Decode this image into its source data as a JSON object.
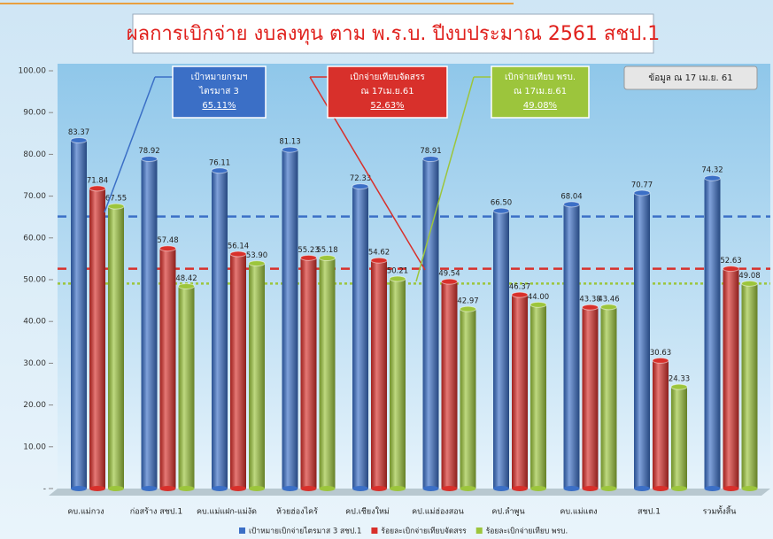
{
  "chart_data": {
    "type": "bar",
    "title": "ผลการเบิกจ่าย งบลงทุน ตาม พ.ร.บ. ปีงบประมาณ 2561  สชป.1",
    "annotation": "ข้อมูล ณ 17 เม.ย. 61",
    "categories": [
      "คบ.แม่กวง",
      "ก่อสร้าง สชป.1",
      "คบ.แม่แฝก-แม่งัด",
      "ห้วยฮ่องไคร้",
      "คป.เชียงใหม่",
      "คป.แม่ฮ่องสอน",
      "คป.ลำพูน",
      "คบ.แม่แตง",
      "สชป.1",
      "รวมทั้งสิ้น"
    ],
    "series": [
      {
        "name": "เป้าหมายเบิกจ่ายไตรมาส 3 สชป.1",
        "color": "#3b6fc6",
        "values": [
          83.37,
          78.92,
          76.11,
          81.13,
          72.33,
          78.91,
          66.5,
          68.04,
          70.77,
          74.32
        ],
        "value_labels": [
          "83.37",
          "78.92",
          "76.11",
          "81.13",
          "72.33",
          "78.91",
          "66.50",
          "68.04",
          "70.77",
          "74.32"
        ]
      },
      {
        "name": "ร้อยละเบิกจ่ายเทียบจัดสรร",
        "color": "#d8302b",
        "values": [
          71.84,
          57.48,
          56.14,
          55.23,
          54.62,
          49.54,
          46.37,
          43.38,
          30.63,
          52.63
        ],
        "value_labels": [
          "71.84",
          "57.48",
          "56.14",
          "55.23",
          "54.62",
          "49.54",
          "46.37",
          "43.38",
          "30.63",
          "52.63"
        ]
      },
      {
        "name": "ร้อยละเบิกจ่ายเทียบ พรบ.",
        "color": "#9cc53c",
        "values": [
          67.55,
          48.42,
          53.9,
          55.18,
          50.21,
          42.97,
          44.0,
          43.46,
          24.33,
          49.08
        ],
        "value_labels": [
          "67.55",
          "48.42",
          "53.90",
          "55.18",
          "50.21",
          "42.97",
          "44.00",
          "43.46",
          "24.33",
          "49.08"
        ]
      }
    ],
    "reference_lines": [
      {
        "value": 65.11,
        "label": "65.11%",
        "text": [
          "เป้าหมายกรมฯ",
          "ไตรมาส 3"
        ],
        "color": "#3b6fc6"
      },
      {
        "value": 52.63,
        "label": "52.63%",
        "text": [
          "เบิกจ่ายเทียบจัดสรร",
          "ณ 17เม.ย.61"
        ],
        "color": "#d8302b"
      },
      {
        "value": 49.08,
        "label": "49.08%",
        "text": [
          "เบิกจ่ายเทียบ พรบ.",
          "ณ  17เม.ย.61"
        ],
        "color": "#9cc53c"
      }
    ],
    "ylim": [
      0,
      100
    ],
    "yticks": [
      {
        "value": 0,
        "label": "-"
      },
      {
        "value": 10,
        "label": "10.00"
      },
      {
        "value": 20,
        "label": "20.00"
      },
      {
        "value": 30,
        "label": "30.00"
      },
      {
        "value": 40,
        "label": "40.00"
      },
      {
        "value": 50,
        "label": "50.00"
      },
      {
        "value": 60,
        "label": "60.00"
      },
      {
        "value": 70,
        "label": "70.00"
      },
      {
        "value": 80,
        "label": "80.00"
      },
      {
        "value": 90,
        "label": "90.00"
      },
      {
        "value": 100,
        "label": "100.00"
      }
    ],
    "legend": "bottom"
  }
}
